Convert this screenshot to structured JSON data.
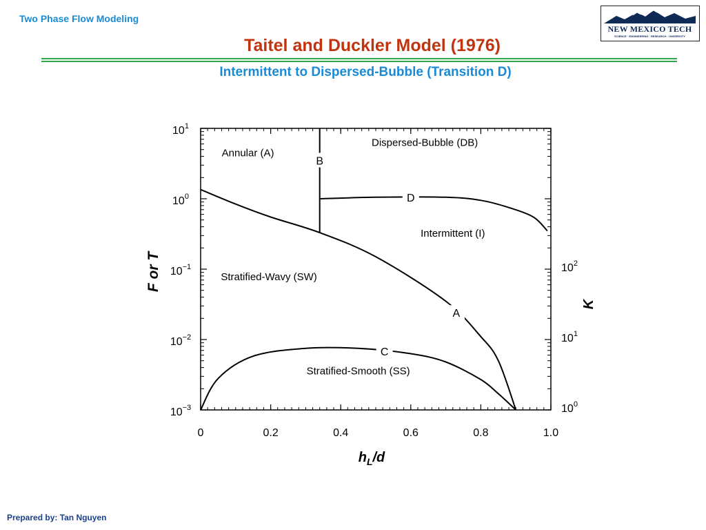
{
  "header": {
    "topic": "Two Phase Flow Modeling",
    "title": "Taitel and Duckler Model (1976)",
    "subtitle": "Intermittent to Dispersed-Bubble (Transition D)"
  },
  "logo": {
    "name": "NEW MEXICO TECH",
    "tagline": "SCIENCE · ENGINEERING · RESEARCH · UNIVERSITY"
  },
  "footer": {
    "credit": "Prepared by: Tan Nguyen"
  },
  "colors": {
    "topic": "#1a8ad4",
    "title": "#c0350f",
    "rule": "#2ea84a",
    "footer": "#1a3f8a",
    "logo_blue": "#0f2a55"
  },
  "chart_data": {
    "type": "line",
    "xlabel": "h_L/d",
    "ylabel_left": "F or T",
    "ylabel_right": "K",
    "xlim": [
      0,
      1.0
    ],
    "ylim_left": [
      0.001,
      10
    ],
    "ylim_right_ticks": [
      "10^0",
      "10^1",
      "10^2"
    ],
    "yscale": "log",
    "grid": false,
    "x_ticks": [
      "0",
      "0.2",
      "0.4",
      "0.6",
      "0.8",
      "1.0"
    ],
    "y_ticks_left": [
      "10^1",
      "10^0",
      "10^-1",
      "10^-2",
      "10^-3"
    ],
    "regions": [
      "Annular (A)",
      "Dispersed-Bubble (DB)",
      "Intermittent (I)",
      "Stratified-Wavy (SW)",
      "Stratified-Smooth (SS)"
    ],
    "series": [
      {
        "name": "A",
        "x": [
          0.0,
          0.1,
          0.2,
          0.34,
          0.5,
          0.7,
          0.8,
          0.85,
          0.9
        ],
        "y": [
          1.35,
          0.84,
          0.55,
          0.33,
          0.15,
          0.035,
          0.011,
          0.005,
          0.001
        ]
      },
      {
        "name": "B",
        "x": [
          0.34,
          0.34
        ],
        "y": [
          0.33,
          10
        ]
      },
      {
        "name": "C",
        "x": [
          0.0,
          0.05,
          0.15,
          0.3,
          0.45,
          0.6,
          0.7,
          0.8,
          0.85,
          0.9
        ],
        "y": [
          0.001,
          0.0028,
          0.0058,
          0.0075,
          0.0075,
          0.0063,
          0.0048,
          0.0027,
          0.0017,
          0.001
        ]
      },
      {
        "name": "D",
        "x": [
          0.34,
          0.5,
          0.7,
          0.8,
          0.88,
          0.95,
          0.99
        ],
        "y": [
          1.0,
          1.05,
          1.05,
          0.95,
          0.75,
          0.55,
          0.35
        ]
      }
    ]
  }
}
